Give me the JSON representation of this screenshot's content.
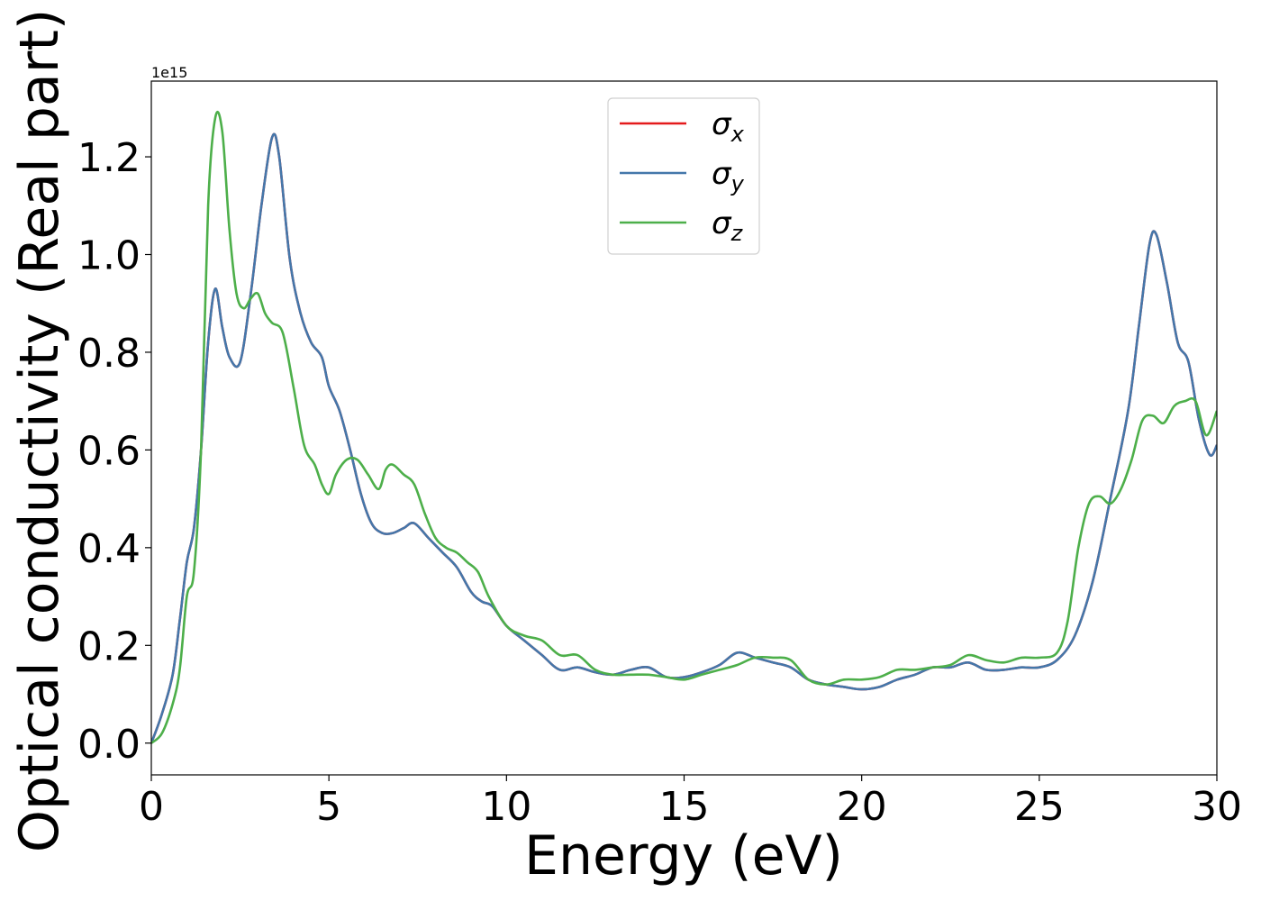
{
  "chart_data": {
    "type": "line",
    "title": "",
    "xlabel": "Energy (eV)",
    "ylabel": "Optical conductivity (Real part)",
    "y_offset_label": "1e15",
    "xlim": [
      0,
      30
    ],
    "ylim": [
      -0.065,
      1.355
    ],
    "x_ticks": [
      0,
      5,
      10,
      15,
      20,
      25,
      30
    ],
    "y_ticks": [
      0.0,
      0.2,
      0.4,
      0.6,
      0.8,
      1.0,
      1.2
    ],
    "x_tick_labels": [
      "0",
      "5",
      "10",
      "15",
      "20",
      "25",
      "30"
    ],
    "y_tick_labels": [
      "0.0",
      "0.2",
      "0.4",
      "0.6",
      "0.8",
      "1.0",
      "1.2"
    ],
    "grid": false,
    "legend_position": "upper-center",
    "series": [
      {
        "name": "σ_x",
        "legend_base": "σ",
        "legend_sub": "x",
        "color": "#e41a1c",
        "x": [
          0,
          0.3,
          0.6,
          0.8,
          1.0,
          1.2,
          1.4,
          1.6,
          1.8,
          2.0,
          2.2,
          2.5,
          2.8,
          3.1,
          3.4,
          3.6,
          3.9,
          4.2,
          4.5,
          4.8,
          5.0,
          5.3,
          5.6,
          5.9,
          6.2,
          6.5,
          6.8,
          7.1,
          7.4,
          7.8,
          8.2,
          8.6,
          9.0,
          9.3,
          9.6,
          10.0,
          10.5,
          11.0,
          11.5,
          12.0,
          12.5,
          13.0,
          13.5,
          14.0,
          14.5,
          15.0,
          15.5,
          16.0,
          16.5,
          17.0,
          17.5,
          18.0,
          18.5,
          19.0,
          19.5,
          20.0,
          20.5,
          21.0,
          21.5,
          22.0,
          22.5,
          23.0,
          23.5,
          24.0,
          24.5,
          25.0,
          25.5,
          26.0,
          26.5,
          27.0,
          27.5,
          27.8,
          28.1,
          28.3,
          28.6,
          28.9,
          29.2,
          29.5,
          29.8,
          30.0
        ],
        "y": [
          0.0,
          0.06,
          0.14,
          0.25,
          0.37,
          0.44,
          0.6,
          0.82,
          0.93,
          0.85,
          0.79,
          0.78,
          0.92,
          1.1,
          1.24,
          1.2,
          0.99,
          0.88,
          0.82,
          0.79,
          0.73,
          0.68,
          0.6,
          0.51,
          0.45,
          0.43,
          0.43,
          0.44,
          0.45,
          0.42,
          0.39,
          0.36,
          0.31,
          0.29,
          0.28,
          0.24,
          0.21,
          0.18,
          0.15,
          0.155,
          0.145,
          0.14,
          0.15,
          0.155,
          0.135,
          0.135,
          0.145,
          0.16,
          0.185,
          0.175,
          0.165,
          0.155,
          0.13,
          0.12,
          0.115,
          0.11,
          0.115,
          0.13,
          0.14,
          0.155,
          0.155,
          0.165,
          0.15,
          0.15,
          0.155,
          0.155,
          0.17,
          0.22,
          0.33,
          0.5,
          0.68,
          0.85,
          1.02,
          1.04,
          0.94,
          0.82,
          0.78,
          0.66,
          0.59,
          0.61
        ]
      },
      {
        "name": "σ_y",
        "legend_base": "σ",
        "legend_sub": "y",
        "color": "#4477aa",
        "x": [
          0,
          0.3,
          0.6,
          0.8,
          1.0,
          1.2,
          1.4,
          1.6,
          1.8,
          2.0,
          2.2,
          2.5,
          2.8,
          3.1,
          3.4,
          3.6,
          3.9,
          4.2,
          4.5,
          4.8,
          5.0,
          5.3,
          5.6,
          5.9,
          6.2,
          6.5,
          6.8,
          7.1,
          7.4,
          7.8,
          8.2,
          8.6,
          9.0,
          9.3,
          9.6,
          10.0,
          10.5,
          11.0,
          11.5,
          12.0,
          12.5,
          13.0,
          13.5,
          14.0,
          14.5,
          15.0,
          15.5,
          16.0,
          16.5,
          17.0,
          17.5,
          18.0,
          18.5,
          19.0,
          19.5,
          20.0,
          20.5,
          21.0,
          21.5,
          22.0,
          22.5,
          23.0,
          23.5,
          24.0,
          24.5,
          25.0,
          25.5,
          26.0,
          26.5,
          27.0,
          27.5,
          27.8,
          28.1,
          28.3,
          28.6,
          28.9,
          29.2,
          29.5,
          29.8,
          30.0
        ],
        "y": [
          0.0,
          0.06,
          0.14,
          0.25,
          0.37,
          0.44,
          0.6,
          0.82,
          0.93,
          0.85,
          0.79,
          0.78,
          0.92,
          1.1,
          1.24,
          1.2,
          0.99,
          0.88,
          0.82,
          0.79,
          0.73,
          0.68,
          0.6,
          0.51,
          0.45,
          0.43,
          0.43,
          0.44,
          0.45,
          0.42,
          0.39,
          0.36,
          0.31,
          0.29,
          0.28,
          0.24,
          0.21,
          0.18,
          0.15,
          0.155,
          0.145,
          0.14,
          0.15,
          0.155,
          0.135,
          0.135,
          0.145,
          0.16,
          0.185,
          0.175,
          0.165,
          0.155,
          0.13,
          0.12,
          0.115,
          0.11,
          0.115,
          0.13,
          0.14,
          0.155,
          0.155,
          0.165,
          0.15,
          0.15,
          0.155,
          0.155,
          0.17,
          0.22,
          0.33,
          0.5,
          0.68,
          0.85,
          1.02,
          1.04,
          0.94,
          0.82,
          0.78,
          0.66,
          0.59,
          0.61
        ]
      },
      {
        "name": "σ_z",
        "legend_base": "σ",
        "legend_sub": "z",
        "color": "#4daf4a",
        "x": [
          0,
          0.3,
          0.6,
          0.8,
          1.0,
          1.2,
          1.4,
          1.6,
          1.8,
          2.0,
          2.2,
          2.4,
          2.6,
          2.8,
          3.0,
          3.2,
          3.4,
          3.7,
          4.0,
          4.3,
          4.6,
          4.8,
          5.0,
          5.2,
          5.5,
          5.8,
          6.1,
          6.4,
          6.6,
          6.8,
          7.1,
          7.4,
          7.7,
          8.0,
          8.3,
          8.6,
          8.9,
          9.2,
          9.5,
          10.0,
          10.5,
          11.0,
          11.5,
          12.0,
          12.5,
          13.0,
          13.5,
          14.0,
          14.5,
          15.0,
          15.5,
          16.0,
          16.5,
          17.0,
          17.5,
          18.0,
          18.5,
          19.0,
          19.5,
          20.0,
          20.5,
          21.0,
          21.5,
          22.0,
          22.5,
          23.0,
          23.5,
          24.0,
          24.5,
          25.0,
          25.5,
          25.8,
          26.1,
          26.4,
          26.7,
          27.0,
          27.3,
          27.6,
          27.9,
          28.2,
          28.5,
          28.8,
          29.1,
          29.4,
          29.7,
          30.0
        ],
        "y": [
          0.0,
          0.02,
          0.08,
          0.15,
          0.3,
          0.35,
          0.6,
          1.1,
          1.28,
          1.25,
          1.05,
          0.92,
          0.89,
          0.91,
          0.92,
          0.88,
          0.86,
          0.84,
          0.73,
          0.61,
          0.57,
          0.53,
          0.51,
          0.55,
          0.58,
          0.58,
          0.55,
          0.52,
          0.56,
          0.57,
          0.55,
          0.53,
          0.47,
          0.42,
          0.4,
          0.39,
          0.37,
          0.35,
          0.3,
          0.24,
          0.22,
          0.21,
          0.18,
          0.18,
          0.15,
          0.14,
          0.14,
          0.14,
          0.135,
          0.13,
          0.14,
          0.15,
          0.16,
          0.175,
          0.175,
          0.17,
          0.13,
          0.12,
          0.13,
          0.13,
          0.135,
          0.15,
          0.15,
          0.155,
          0.16,
          0.18,
          0.17,
          0.165,
          0.175,
          0.175,
          0.185,
          0.25,
          0.4,
          0.49,
          0.505,
          0.49,
          0.52,
          0.58,
          0.66,
          0.67,
          0.655,
          0.69,
          0.7,
          0.7,
          0.63,
          0.68
        ]
      }
    ]
  }
}
